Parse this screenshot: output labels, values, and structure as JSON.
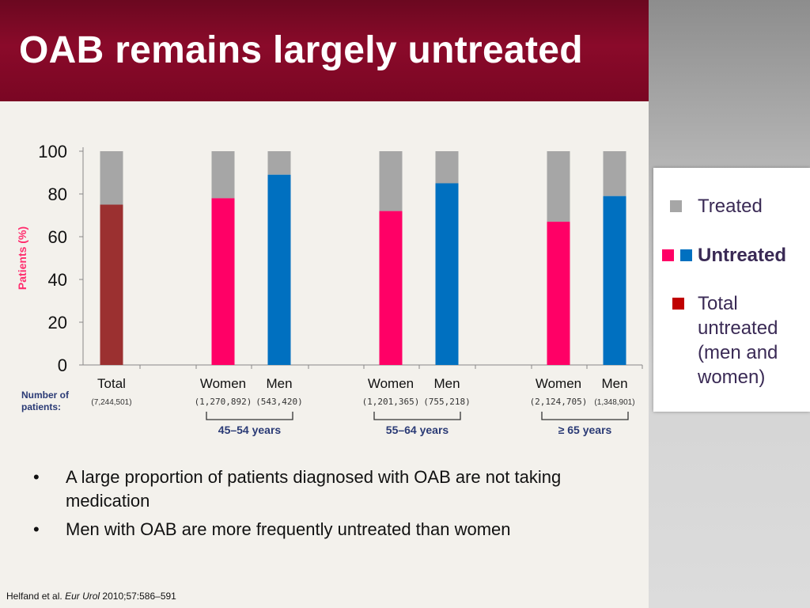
{
  "title": "OAB remains largely untreated",
  "chart_data": {
    "type": "bar",
    "stacked": true,
    "ylabel": "Patients (%)",
    "ylim": [
      0,
      100
    ],
    "yticks": [
      0,
      20,
      40,
      60,
      80,
      100
    ],
    "categories": [
      "Total",
      "Women",
      "Men",
      "Women",
      "Men",
      "Women",
      "Men"
    ],
    "patients": [
      "(7,244,501)",
      "(1,270,892)",
      "(543,420)",
      "(1,201,365)",
      "(755,218)",
      "(2,124,705)",
      "(1,348,901)"
    ],
    "groups": [
      {
        "label": "45–54 years",
        "members": [
          1,
          2
        ]
      },
      {
        "label": "55–64 years",
        "members": [
          3,
          4
        ]
      },
      {
        "label": "≥ 65 years",
        "members": [
          5,
          6
        ]
      }
    ],
    "series": [
      {
        "name": "Untreated",
        "values": [
          75,
          78,
          89,
          72,
          85,
          67,
          79
        ]
      },
      {
        "name": "Treated",
        "values": [
          25,
          22,
          11,
          28,
          15,
          33,
          21
        ]
      }
    ],
    "bar_colors": [
      "#9b3030",
      "#ff0066",
      "#0070c0",
      "#ff0066",
      "#0070c0",
      "#ff0066",
      "#0070c0"
    ],
    "treated_color": "#a6a6a6",
    "number_of_patients_label": "Number of patients:"
  },
  "legend": {
    "treated": "Treated",
    "untreated": "Untreated",
    "total_untreated": "Total untreated (men and women)",
    "colors": {
      "treated": "#a6a6a6",
      "women": "#ff0066",
      "men": "#0070c0",
      "total": "#c00000"
    }
  },
  "bullets": [
    "A large proportion of patients diagnosed with OAB are not taking medication",
    "Men with OAB are more frequently untreated than women"
  ],
  "reference": {
    "authors": "Helfand et al.",
    "journal": "Eur Urol",
    "citation": "2010;57:586–591"
  }
}
